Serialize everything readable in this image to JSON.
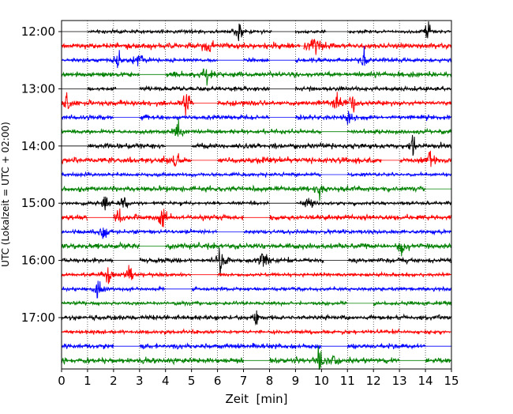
{
  "chart_data": {
    "type": "line",
    "title": "",
    "xlabel": "Zeit  [min]",
    "ylabel": "UTC (Lokalzeit = UTC + 02:00)",
    "xlim": [
      0,
      15
    ],
    "x_ticks": [
      "0",
      "1",
      "2",
      "3",
      "4",
      "5",
      "6",
      "7",
      "8",
      "9",
      "10",
      "11",
      "12",
      "13",
      "14",
      "15"
    ],
    "y_ticks": [
      "12:00",
      "13:00",
      "14:00",
      "15:00",
      "16:00",
      "17:00"
    ],
    "grid": "x",
    "row_colors": [
      "#000000",
      "#ff0000",
      "#0000ff",
      "#008000"
    ],
    "rows": [
      {
        "start": "12:00",
        "color": "black",
        "gaps": [
          [
            0,
            1.0
          ],
          [
            8.1,
            9.0
          ],
          [
            10.2,
            11.0
          ]
        ],
        "bursts": [
          6.8,
          14.1
        ]
      },
      {
        "start": "12:15",
        "color": "red",
        "gaps": [
          [
            9.2,
            9.3
          ]
        ],
        "bursts": [
          5.6,
          9.6,
          9.9
        ]
      },
      {
        "start": "12:30",
        "color": "blue",
        "gaps": [
          [
            6.0,
            7.0
          ],
          [
            8.0,
            9.0
          ]
        ],
        "bursts": [
          2.2,
          3.0,
          11.6
        ]
      },
      {
        "start": "12:45",
        "color": "green",
        "gaps": [
          [
            3.0,
            4.0
          ]
        ],
        "bursts": [
          5.6
        ]
      },
      {
        "start": "13:00",
        "color": "black",
        "gaps": [
          [
            0,
            1.0
          ],
          [
            2.1,
            3.0
          ],
          [
            8.0,
            9.0
          ]
        ],
        "bursts": []
      },
      {
        "start": "13:15",
        "color": "red",
        "gaps": [
          [
            5.1,
            6.0
          ]
        ],
        "bursts": [
          0.2,
          4.8,
          10.6,
          11.2
        ]
      },
      {
        "start": "13:30",
        "color": "blue",
        "gaps": [
          [
            2.0,
            3.0
          ],
          [
            8.0,
            9.0
          ]
        ],
        "bursts": [
          11.1
        ]
      },
      {
        "start": "13:45",
        "color": "green",
        "gaps": [
          [
            10.0,
            11.0
          ]
        ],
        "bursts": [
          4.5
        ]
      },
      {
        "start": "14:00",
        "color": "black",
        "gaps": [
          [
            0,
            1.0
          ],
          [
            4.0,
            5.0
          ]
        ],
        "bursts": [
          13.5
        ]
      },
      {
        "start": "14:15",
        "color": "red",
        "gaps": [
          [
            5.0,
            6.0
          ],
          [
            12.3,
            13.0
          ]
        ],
        "bursts": [
          4.4,
          14.2
        ]
      },
      {
        "start": "14:30",
        "color": "blue",
        "gaps": [
          [
            10.0,
            11.0
          ]
        ],
        "bursts": []
      },
      {
        "start": "14:45",
        "color": "green",
        "gaps": [
          [
            14.0,
            15.0
          ]
        ],
        "bursts": [
          9.9
        ]
      },
      {
        "start": "15:00",
        "color": "black",
        "gaps": [
          [
            8.0,
            9.0
          ]
        ],
        "bursts": [
          1.7,
          2.4,
          9.5
        ]
      },
      {
        "start": "15:15",
        "color": "red",
        "gaps": [
          [
            1.0,
            2.0
          ],
          [
            7.0,
            8.0
          ]
        ],
        "bursts": [
          2.2,
          3.9
        ]
      },
      {
        "start": "15:30",
        "color": "blue",
        "gaps": [
          [
            6.0,
            7.0
          ]
        ],
        "bursts": [
          1.6
        ]
      },
      {
        "start": "15:45",
        "color": "green",
        "gaps": [
          [
            3.0,
            4.0
          ]
        ],
        "bursts": [
          13.1
        ]
      },
      {
        "start": "16:00",
        "color": "black",
        "gaps": [
          [
            2.0,
            3.0
          ],
          [
            10.1,
            11.0
          ]
        ],
        "bursts": [
          6.1,
          7.8
        ]
      },
      {
        "start": "16:15",
        "color": "red",
        "gaps": [
          [
            5.0,
            6.0
          ]
        ],
        "bursts": [
          1.8,
          2.6
        ]
      },
      {
        "start": "16:30",
        "color": "blue",
        "gaps": [
          [
            4.0,
            5.0
          ]
        ],
        "bursts": [
          1.4
        ]
      },
      {
        "start": "16:45",
        "color": "green",
        "gaps": [
          [
            11.0,
            12.0
          ]
        ],
        "bursts": []
      },
      {
        "start": "17:00",
        "color": "black",
        "gaps": [],
        "bursts": [
          7.5
        ]
      },
      {
        "start": "17:15",
        "color": "red",
        "gaps": [],
        "bursts": []
      },
      {
        "start": "17:30",
        "color": "blue",
        "gaps": [
          [
            2.0,
            3.0
          ],
          [
            10.0,
            11.0
          ],
          [
            14.0,
            15.0
          ]
        ],
        "bursts": []
      },
      {
        "start": "17:45",
        "color": "green",
        "gaps": [
          [
            7.0,
            8.0
          ],
          [
            13.0,
            14.0
          ]
        ],
        "bursts": [
          9.9,
          10.5
        ]
      }
    ]
  }
}
